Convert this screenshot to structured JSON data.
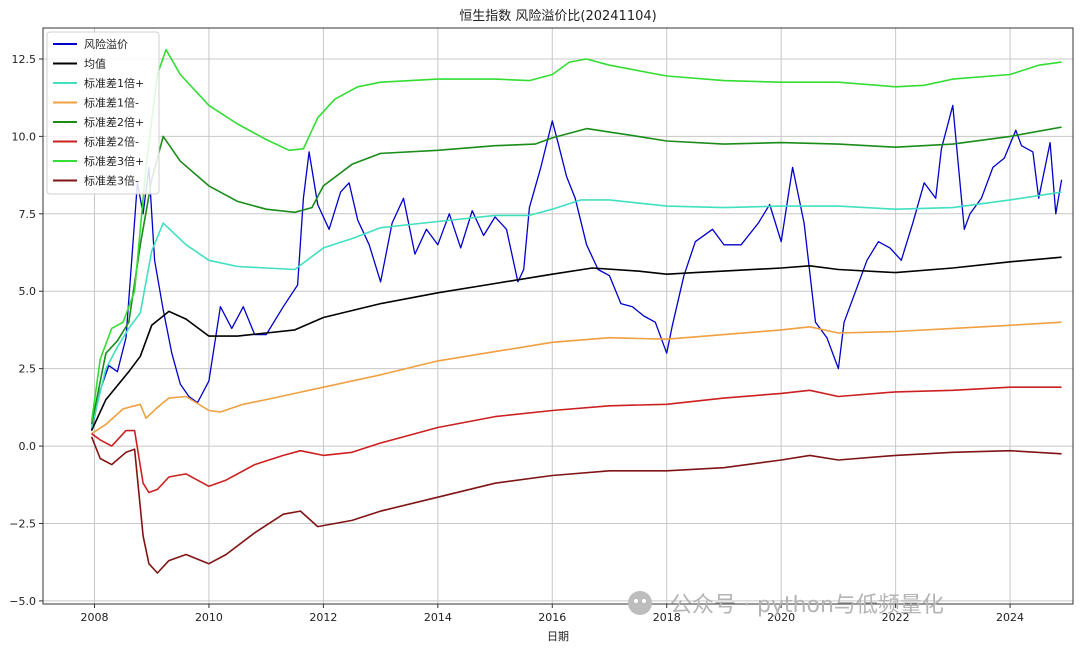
{
  "chart_data": {
    "type": "line",
    "title": "恒生指数 风险溢价比(20241104)",
    "xlabel": "日期",
    "ylabel": "",
    "xlim": [
      2007.1,
      2025.1
    ],
    "ylim": [
      -5.1,
      13.5
    ],
    "x_ticks": [
      2008,
      2010,
      2012,
      2014,
      2016,
      2018,
      2020,
      2022,
      2024
    ],
    "x_tick_labels": [
      "2008",
      "2010",
      "2012",
      "2014",
      "2016",
      "2018",
      "2020",
      "2022",
      "2024"
    ],
    "y_ticks": [
      -5.0,
      -2.5,
      0.0,
      2.5,
      5.0,
      7.5,
      10.0,
      12.5
    ],
    "y_tick_labels": [
      "−5.0",
      "−2.5",
      "0.0",
      "2.5",
      "5.0",
      "7.5",
      "10.0",
      "12.5"
    ],
    "grid": true,
    "legend_position": "top-left",
    "series": [
      {
        "name": "风险溢价",
        "color": "#0000cc",
        "x": [
          2007.95,
          2008.1,
          2008.25,
          2008.4,
          2008.55,
          2008.65,
          2008.75,
          2008.85,
          2008.95,
          2009.05,
          2009.2,
          2009.35,
          2009.5,
          2009.65,
          2009.8,
          2010.0,
          2010.2,
          2010.4,
          2010.6,
          2010.8,
          2011.0,
          2011.3,
          2011.55,
          2011.65,
          2011.75,
          2011.9,
          2012.1,
          2012.3,
          2012.45,
          2012.6,
          2012.8,
          2013.0,
          2013.2,
          2013.4,
          2013.6,
          2013.8,
          2014.0,
          2014.2,
          2014.4,
          2014.6,
          2014.8,
          2015.0,
          2015.2,
          2015.4,
          2015.5,
          2015.6,
          2015.8,
          2016.0,
          2016.1,
          2016.25,
          2016.4,
          2016.6,
          2016.8,
          2017.0,
          2017.2,
          2017.4,
          2017.6,
          2017.8,
          2018.0,
          2018.1,
          2018.3,
          2018.5,
          2018.8,
          2019.0,
          2019.3,
          2019.6,
          2019.8,
          2020.0,
          2020.2,
          2020.4,
          2020.6,
          2020.8,
          2021.0,
          2021.1,
          2021.3,
          2021.5,
          2021.7,
          2021.9,
          2022.1,
          2022.3,
          2022.5,
          2022.7,
          2022.8,
          2023.0,
          2023.2,
          2023.3,
          2023.5,
          2023.7,
          2023.9,
          2024.1,
          2024.2,
          2024.4,
          2024.5,
          2024.7,
          2024.8,
          2024.9
        ],
        "y": [
          0.5,
          1.8,
          2.6,
          2.4,
          3.5,
          6.0,
          8.5,
          7.5,
          9.0,
          6.0,
          4.4,
          3.0,
          2.0,
          1.6,
          1.4,
          2.1,
          4.5,
          3.8,
          4.5,
          3.6,
          3.6,
          4.5,
          5.2,
          8.0,
          9.5,
          7.8,
          7.0,
          8.2,
          8.5,
          7.3,
          6.5,
          5.3,
          7.2,
          8.0,
          6.2,
          7.0,
          6.5,
          7.5,
          6.4,
          7.6,
          6.8,
          7.4,
          7.0,
          5.3,
          5.7,
          7.7,
          9.0,
          10.5,
          9.8,
          8.7,
          8.0,
          6.5,
          5.7,
          5.5,
          4.6,
          4.5,
          4.2,
          4.0,
          3.0,
          3.9,
          5.5,
          6.6,
          7.0,
          6.5,
          6.5,
          7.2,
          7.8,
          6.6,
          9.0,
          7.2,
          4.0,
          3.5,
          2.5,
          4.0,
          5.0,
          6.0,
          6.6,
          6.4,
          6.0,
          7.2,
          8.5,
          8.0,
          9.6,
          11.0,
          7.0,
          7.5,
          8.0,
          9.0,
          9.3,
          10.2,
          9.7,
          9.5,
          8.0,
          9.8,
          7.5,
          8.6
        ]
      },
      {
        "name": "均值",
        "color": "#000000",
        "x": [
          2007.95,
          2008.2,
          2008.6,
          2008.8,
          2009.0,
          2009.3,
          2009.6,
          2010.0,
          2010.5,
          2011.0,
          2011.5,
          2012.0,
          2013.0,
          2014.0,
          2015.0,
          2016.0,
          2016.7,
          2017.5,
          2018.0,
          2018.5,
          2019.0,
          2020.0,
          2020.5,
          2021.0,
          2022.0,
          2023.0,
          2024.0,
          2024.9
        ],
        "y": [
          0.5,
          1.5,
          2.4,
          2.9,
          3.9,
          4.35,
          4.1,
          3.55,
          3.55,
          3.65,
          3.75,
          4.15,
          4.6,
          4.95,
          5.25,
          5.55,
          5.75,
          5.65,
          5.55,
          5.6,
          5.65,
          5.75,
          5.82,
          5.7,
          5.6,
          5.75,
          5.95,
          6.1
        ]
      },
      {
        "name": "标准差1倍+",
        "color": "#40e0c0",
        "x": [
          2007.95,
          2008.2,
          2008.4,
          2008.6,
          2008.8,
          2009.0,
          2009.2,
          2009.6,
          2010.0,
          2010.5,
          2011.0,
          2011.5,
          2012.0,
          2012.5,
          2013.0,
          2014.0,
          2015.0,
          2015.6,
          2016.0,
          2016.5,
          2017.0,
          2018.0,
          2019.0,
          2020.0,
          2021.0,
          2022.0,
          2023.0,
          2024.0,
          2024.9
        ],
        "y": [
          0.6,
          2.5,
          3.2,
          3.8,
          4.3,
          6.3,
          7.2,
          6.5,
          6.0,
          5.8,
          5.75,
          5.7,
          6.4,
          6.7,
          7.05,
          7.25,
          7.45,
          7.45,
          7.65,
          7.95,
          7.95,
          7.75,
          7.7,
          7.75,
          7.75,
          7.65,
          7.7,
          7.95,
          8.2
        ]
      },
      {
        "name": "标准差1倍-",
        "color": "#f0a040",
        "x": [
          2007.95,
          2008.2,
          2008.5,
          2008.8,
          2008.9,
          2009.1,
          2009.3,
          2009.6,
          2010.0,
          2010.2,
          2010.6,
          2011.0,
          2011.5,
          2012.0,
          2013.0,
          2014.0,
          2015.0,
          2016.0,
          2017.0,
          2018.0,
          2019.0,
          2020.0,
          2020.5,
          2021.0,
          2022.0,
          2023.0,
          2024.0,
          2024.9
        ],
        "y": [
          0.4,
          0.7,
          1.2,
          1.35,
          0.9,
          1.25,
          1.55,
          1.6,
          1.15,
          1.1,
          1.35,
          1.5,
          1.7,
          1.9,
          2.3,
          2.75,
          3.05,
          3.35,
          3.5,
          3.45,
          3.6,
          3.75,
          3.85,
          3.65,
          3.7,
          3.8,
          3.9,
          4.0
        ]
      },
      {
        "name": "标准差2倍+",
        "color": "#1a8c1a",
        "x": [
          2007.95,
          2008.2,
          2008.4,
          2008.6,
          2008.8,
          2009.0,
          2009.2,
          2009.5,
          2010.0,
          2010.5,
          2011.0,
          2011.5,
          2011.8,
          2012.0,
          2012.5,
          2013.0,
          2014.0,
          2015.0,
          2015.7,
          2016.0,
          2016.6,
          2017.5,
          2018.0,
          2019.0,
          2020.0,
          2021.0,
          2022.0,
          2023.0,
          2024.0,
          2024.9
        ],
        "y": [
          0.7,
          3.0,
          3.4,
          4.0,
          6.5,
          8.6,
          10.0,
          9.2,
          8.4,
          7.9,
          7.65,
          7.55,
          7.7,
          8.4,
          9.1,
          9.45,
          9.55,
          9.7,
          9.75,
          9.95,
          10.25,
          10.0,
          9.85,
          9.75,
          9.8,
          9.75,
          9.65,
          9.75,
          10.0,
          10.3
        ]
      },
      {
        "name": "标准差2倍-",
        "color": "#cc2020",
        "x": [
          2007.95,
          2008.1,
          2008.3,
          2008.55,
          2008.7,
          2008.85,
          2008.95,
          2009.1,
          2009.3,
          2009.6,
          2010.0,
          2010.3,
          2010.8,
          2011.3,
          2011.6,
          2012.0,
          2012.5,
          2013.0,
          2014.0,
          2015.0,
          2016.0,
          2017.0,
          2018.0,
          2019.0,
          2020.0,
          2020.5,
          2021.0,
          2022.0,
          2023.0,
          2024.0,
          2024.9
        ],
        "y": [
          0.4,
          0.2,
          0.0,
          0.5,
          0.5,
          -1.2,
          -1.5,
          -1.4,
          -1.0,
          -0.9,
          -1.3,
          -1.1,
          -0.6,
          -0.3,
          -0.15,
          -0.3,
          -0.2,
          0.1,
          0.6,
          0.95,
          1.15,
          1.3,
          1.35,
          1.55,
          1.7,
          1.8,
          1.6,
          1.75,
          1.8,
          1.9,
          1.9
        ]
      },
      {
        "name": "标准差3倍+",
        "color": "#33dd33",
        "x": [
          2007.95,
          2008.1,
          2008.3,
          2008.5,
          2008.7,
          2008.9,
          2009.1,
          2009.25,
          2009.5,
          2010.0,
          2010.5,
          2011.0,
          2011.4,
          2011.65,
          2011.9,
          2012.2,
          2012.6,
          2013.0,
          2014.0,
          2015.0,
          2015.6,
          2016.0,
          2016.3,
          2016.6,
          2017.0,
          2018.0,
          2019.0,
          2020.0,
          2021.0,
          2022.0,
          2022.5,
          2023.0,
          2024.0,
          2024.5,
          2024.9
        ],
        "y": [
          0.8,
          2.8,
          3.8,
          4.0,
          5.0,
          9.0,
          12.0,
          12.8,
          12.0,
          11.0,
          10.4,
          9.9,
          9.55,
          9.6,
          10.6,
          11.2,
          11.6,
          11.75,
          11.85,
          11.85,
          11.8,
          12.0,
          12.4,
          12.5,
          12.3,
          11.95,
          11.8,
          11.75,
          11.75,
          11.6,
          11.65,
          11.85,
          12.0,
          12.3,
          12.4
        ]
      },
      {
        "name": "标准差3倍-",
        "color": "#801414",
        "x": [
          2007.95,
          2008.1,
          2008.3,
          2008.55,
          2008.7,
          2008.85,
          2008.95,
          2009.1,
          2009.3,
          2009.6,
          2010.0,
          2010.3,
          2010.8,
          2011.3,
          2011.6,
          2011.9,
          2012.5,
          2013.0,
          2014.0,
          2015.0,
          2016.0,
          2017.0,
          2018.0,
          2019.0,
          2020.0,
          2020.5,
          2021.0,
          2022.0,
          2023.0,
          2024.0,
          2024.9
        ],
        "y": [
          0.3,
          -0.4,
          -0.6,
          -0.2,
          -0.1,
          -2.9,
          -3.8,
          -4.1,
          -3.7,
          -3.5,
          -3.8,
          -3.5,
          -2.8,
          -2.2,
          -2.1,
          -2.6,
          -2.4,
          -2.1,
          -1.65,
          -1.2,
          -0.95,
          -0.8,
          -0.8,
          -0.7,
          -0.45,
          -0.3,
          -0.45,
          -0.3,
          -0.2,
          -0.15,
          -0.25
        ]
      }
    ],
    "watermark": "公众号 · python与低频量化"
  }
}
